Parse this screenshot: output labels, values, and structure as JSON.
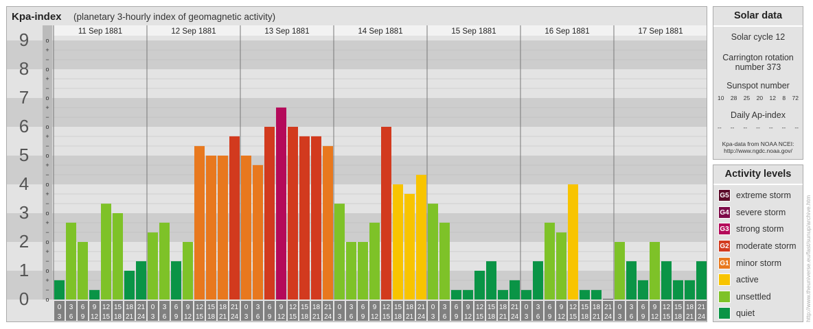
{
  "header": {
    "title": "Kpa-index",
    "subtitle": "(planetary 3-hourly index of geomagnetic activity)"
  },
  "chart_data": {
    "type": "bar",
    "ylim": [
      0,
      9
    ],
    "y_ticks": [
      "0",
      "1",
      "2",
      "3",
      "4",
      "5",
      "6",
      "7",
      "8",
      "9"
    ],
    "minor_ticks": [
      "−",
      "o",
      "+"
    ],
    "days": [
      "11 Sep 1881",
      "12 Sep 1881",
      "13 Sep 1881",
      "14 Sep 1881",
      "15 Sep 1881",
      "16 Sep 1881",
      "17 Sep 1881"
    ],
    "interval_labels": [
      [
        "0",
        "3"
      ],
      [
        "3",
        "6"
      ],
      [
        "6",
        "9"
      ],
      [
        "9",
        "12"
      ],
      [
        "12",
        "15"
      ],
      [
        "15",
        "18"
      ],
      [
        "18",
        "21"
      ],
      [
        "21",
        "24"
      ]
    ],
    "values": [
      [
        0.67,
        2.67,
        2.0,
        0.33,
        3.33,
        3.0,
        1.0,
        1.33
      ],
      [
        2.33,
        2.67,
        1.33,
        2.0,
        5.33,
        5.0,
        5.0,
        5.67
      ],
      [
        5.0,
        4.67,
        6.0,
        6.67,
        6.0,
        5.67,
        5.67,
        5.33
      ],
      [
        3.33,
        2.0,
        2.0,
        2.67,
        6.0,
        4.0,
        3.67,
        4.33
      ],
      [
        3.33,
        2.67,
        0.33,
        0.33,
        1.0,
        1.33,
        0.33,
        0.67
      ],
      [
        0.33,
        1.33,
        2.67,
        2.33,
        4.0,
        0.33,
        0.33,
        0.0
      ],
      [
        2.0,
        1.33,
        0.67,
        2.0,
        1.33,
        0.67,
        0.67,
        1.33
      ]
    ],
    "grid": true
  },
  "solar": {
    "title": "Solar data",
    "cycle": "Solar cycle 12",
    "carrington_1": "Carrington rotation",
    "carrington_2": "number 373",
    "sunspot_title": "Sunspot number",
    "sunspots": [
      "10",
      "28",
      "25",
      "20",
      "12",
      "8",
      "72"
    ],
    "ap_title": "Daily Ap-index",
    "ap_values": [
      "--",
      "--",
      "--",
      "--",
      "--",
      "--",
      "--"
    ],
    "source_1": "Kpa-data from NOAA NCEI:",
    "source_2": "http://www.ngdc.noaa.gov/"
  },
  "activity": {
    "title": "Activity levels",
    "levels": [
      {
        "code": "G5",
        "label": "extreme storm",
        "color": "#5a0a28"
      },
      {
        "code": "G4",
        "label": "severe storm",
        "color": "#7d0a48"
      },
      {
        "code": "G3",
        "label": "strong storm",
        "color": "#b40a5a"
      },
      {
        "code": "G2",
        "label": "moderate storm",
        "color": "#d23a1e"
      },
      {
        "code": "G1",
        "label": "minor storm",
        "color": "#e8781e"
      },
      {
        "code": "",
        "label": "active",
        "color": "#f8c400"
      },
      {
        "code": "",
        "label": "unsettled",
        "color": "#7ec228"
      },
      {
        "code": "",
        "label": "quiet",
        "color": "#0a9446"
      }
    ]
  },
  "watermark": "http://www.theuniverse.eu/fast/sunup/archive.htm"
}
